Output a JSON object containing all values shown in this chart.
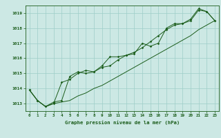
{
  "xlabel": "Graphe pression niveau de la mer (hPa)",
  "xlim": [
    -0.5,
    23.5
  ],
  "ylim": [
    1012.5,
    1019.5
  ],
  "yticks": [
    1013,
    1014,
    1015,
    1016,
    1017,
    1018,
    1019
  ],
  "xticks": [
    0,
    1,
    2,
    3,
    4,
    5,
    6,
    7,
    8,
    9,
    10,
    11,
    12,
    13,
    14,
    15,
    16,
    17,
    18,
    19,
    20,
    21,
    22,
    23
  ],
  "bg_color": "#cce8e4",
  "grid_color": "#9ecec8",
  "line_color": "#1a5c1a",
  "line1": [
    1013.9,
    1013.2,
    1012.8,
    1013.0,
    1014.4,
    1014.6,
    1015.0,
    1015.2,
    1015.1,
    1015.5,
    1016.1,
    1016.1,
    1016.2,
    1016.3,
    1017.0,
    1016.8,
    1017.0,
    1018.0,
    1018.3,
    1018.3,
    1018.5,
    1019.2,
    1019.1,
    1018.5
  ],
  "line2": [
    1013.9,
    1013.2,
    1012.8,
    1013.1,
    1013.2,
    1014.8,
    1015.1,
    1015.0,
    1015.1,
    1015.4,
    1015.5,
    1015.9,
    1016.2,
    1016.4,
    1016.7,
    1017.1,
    1017.5,
    1017.9,
    1018.2,
    1018.3,
    1018.6,
    1019.3,
    1019.1,
    1018.5
  ],
  "line3": [
    1013.9,
    1013.2,
    1012.8,
    1013.0,
    1013.1,
    1013.2,
    1013.5,
    1013.7,
    1014.0,
    1014.2,
    1014.5,
    1014.8,
    1015.1,
    1015.4,
    1015.7,
    1016.0,
    1016.3,
    1016.6,
    1016.9,
    1017.2,
    1017.5,
    1017.9,
    1018.2,
    1018.5
  ]
}
